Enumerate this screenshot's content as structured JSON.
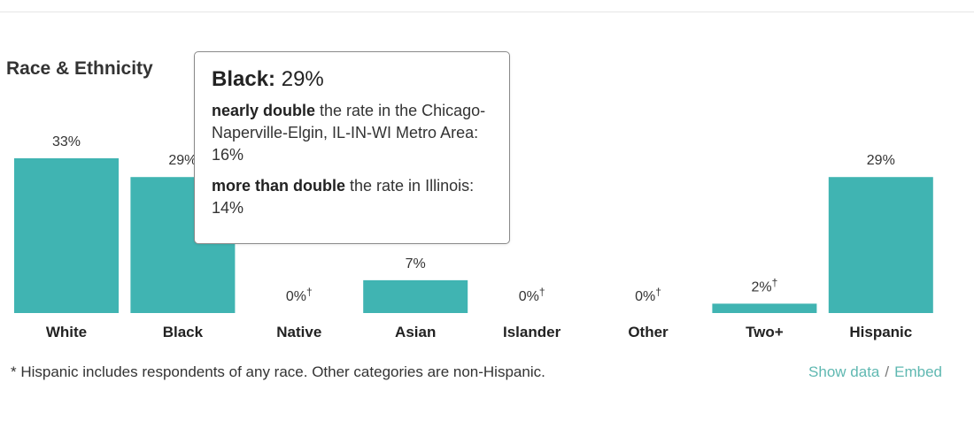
{
  "section": {
    "title": "Race & Ethnicity"
  },
  "colors": {
    "bar": "#40b4b2",
    "link": "#5fb8b1"
  },
  "chart_data": {
    "type": "bar",
    "categories": [
      "White",
      "Black",
      "Native",
      "Asian",
      "Islander",
      "Other",
      "Two+",
      "Hispanic"
    ],
    "values": [
      33,
      29,
      0,
      7,
      0,
      0,
      2,
      29
    ],
    "labels": [
      "33%",
      "29%",
      "0%",
      "7%",
      "0%",
      "0%",
      "2%",
      "29%"
    ],
    "dagger": [
      false,
      false,
      true,
      false,
      true,
      true,
      true,
      false
    ],
    "dagger_symbol": "†",
    "ylim": [
      0,
      33
    ],
    "grid": false,
    "legend": "none"
  },
  "tooltip": {
    "category": "Black:",
    "value": "29%",
    "comparisons": [
      {
        "emphasis": "nearly double",
        "text": " the rate in the Chicago-Naperville-Elgin, IL-IN-WI Metro Area: 16%"
      },
      {
        "emphasis": "more than double",
        "text": " the rate in Illinois: 14%"
      }
    ]
  },
  "footnote": "* Hispanic includes respondents of any race. Other categories are non-Hispanic.",
  "links": {
    "show_data": "Show data",
    "separator": "/",
    "embed": "Embed"
  }
}
